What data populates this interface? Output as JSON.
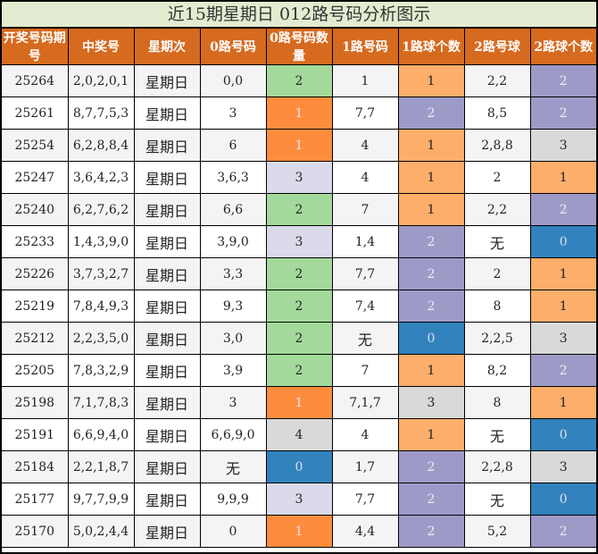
{
  "title": "近15期星期日 012路号码分析图示",
  "headers": [
    "开奖号码期号",
    "中奖号",
    "星期次",
    "0路号码",
    "0路号码数量",
    "1路号码",
    "1路球个数",
    "2路号球",
    "2路球个数"
  ],
  "colors": {
    "green": "#a3d99b",
    "orange": "#fd8d3c",
    "lorange": "#fdae6b",
    "purple": "#9e9ac8",
    "blue": "#3182bd",
    "gray": "#d9d9d9",
    "lav": "#dadaeb",
    "header": "#d66a1f",
    "title_bg": "#e2ecd0"
  },
  "rows": [
    [
      "25264",
      "2,0,2,0,1",
      "星期日",
      "0,0",
      "2",
      "1",
      "1",
      "2,2",
      "2"
    ],
    [
      "25261",
      "8,7,7,5,3",
      "星期日",
      "3",
      "1",
      "7,7",
      "2",
      "8,5",
      "2"
    ],
    [
      "25254",
      "6,2,8,8,4",
      "星期日",
      "6",
      "1",
      "4",
      "1",
      "2,8,8",
      "3"
    ],
    [
      "25247",
      "3,6,4,2,3",
      "星期日",
      "3,6,3",
      "3",
      "4",
      "1",
      "2",
      "1"
    ],
    [
      "25240",
      "6,2,7,6,2",
      "星期日",
      "6,6",
      "2",
      "7",
      "1",
      "2,2",
      "2"
    ],
    [
      "25233",
      "1,4,3,9,0",
      "星期日",
      "3,9,0",
      "3",
      "1,4",
      "2",
      "无",
      "0"
    ],
    [
      "25226",
      "3,7,3,2,7",
      "星期日",
      "3,3",
      "2",
      "7,7",
      "2",
      "2",
      "1"
    ],
    [
      "25219",
      "7,8,4,9,3",
      "星期日",
      "9,3",
      "2",
      "7,4",
      "2",
      "8",
      "1"
    ],
    [
      "25212",
      "2,2,3,5,0",
      "星期日",
      "3,0",
      "2",
      "无",
      "0",
      "2,2,5",
      "3"
    ],
    [
      "25205",
      "7,8,3,2,9",
      "星期日",
      "3,9",
      "2",
      "7",
      "1",
      "8,2",
      "2"
    ],
    [
      "25198",
      "7,1,7,8,3",
      "星期日",
      "3",
      "1",
      "7,1,7",
      "3",
      "8",
      "1"
    ],
    [
      "25191",
      "6,6,9,4,0",
      "星期日",
      "6,6,9,0",
      "4",
      "4",
      "1",
      "无",
      "0"
    ],
    [
      "25184",
      "2,2,1,8,7",
      "星期日",
      "无",
      "0",
      "1,7",
      "2",
      "2,2,8",
      "3"
    ],
    [
      "25177",
      "9,7,7,9,9",
      "星期日",
      "9,9,9",
      "3",
      "7,7",
      "2",
      "无",
      "0"
    ],
    [
      "25170",
      "5,0,2,4,4",
      "星期日",
      "0",
      "1",
      "4,4",
      "2",
      "5,2",
      "2"
    ]
  ]
}
